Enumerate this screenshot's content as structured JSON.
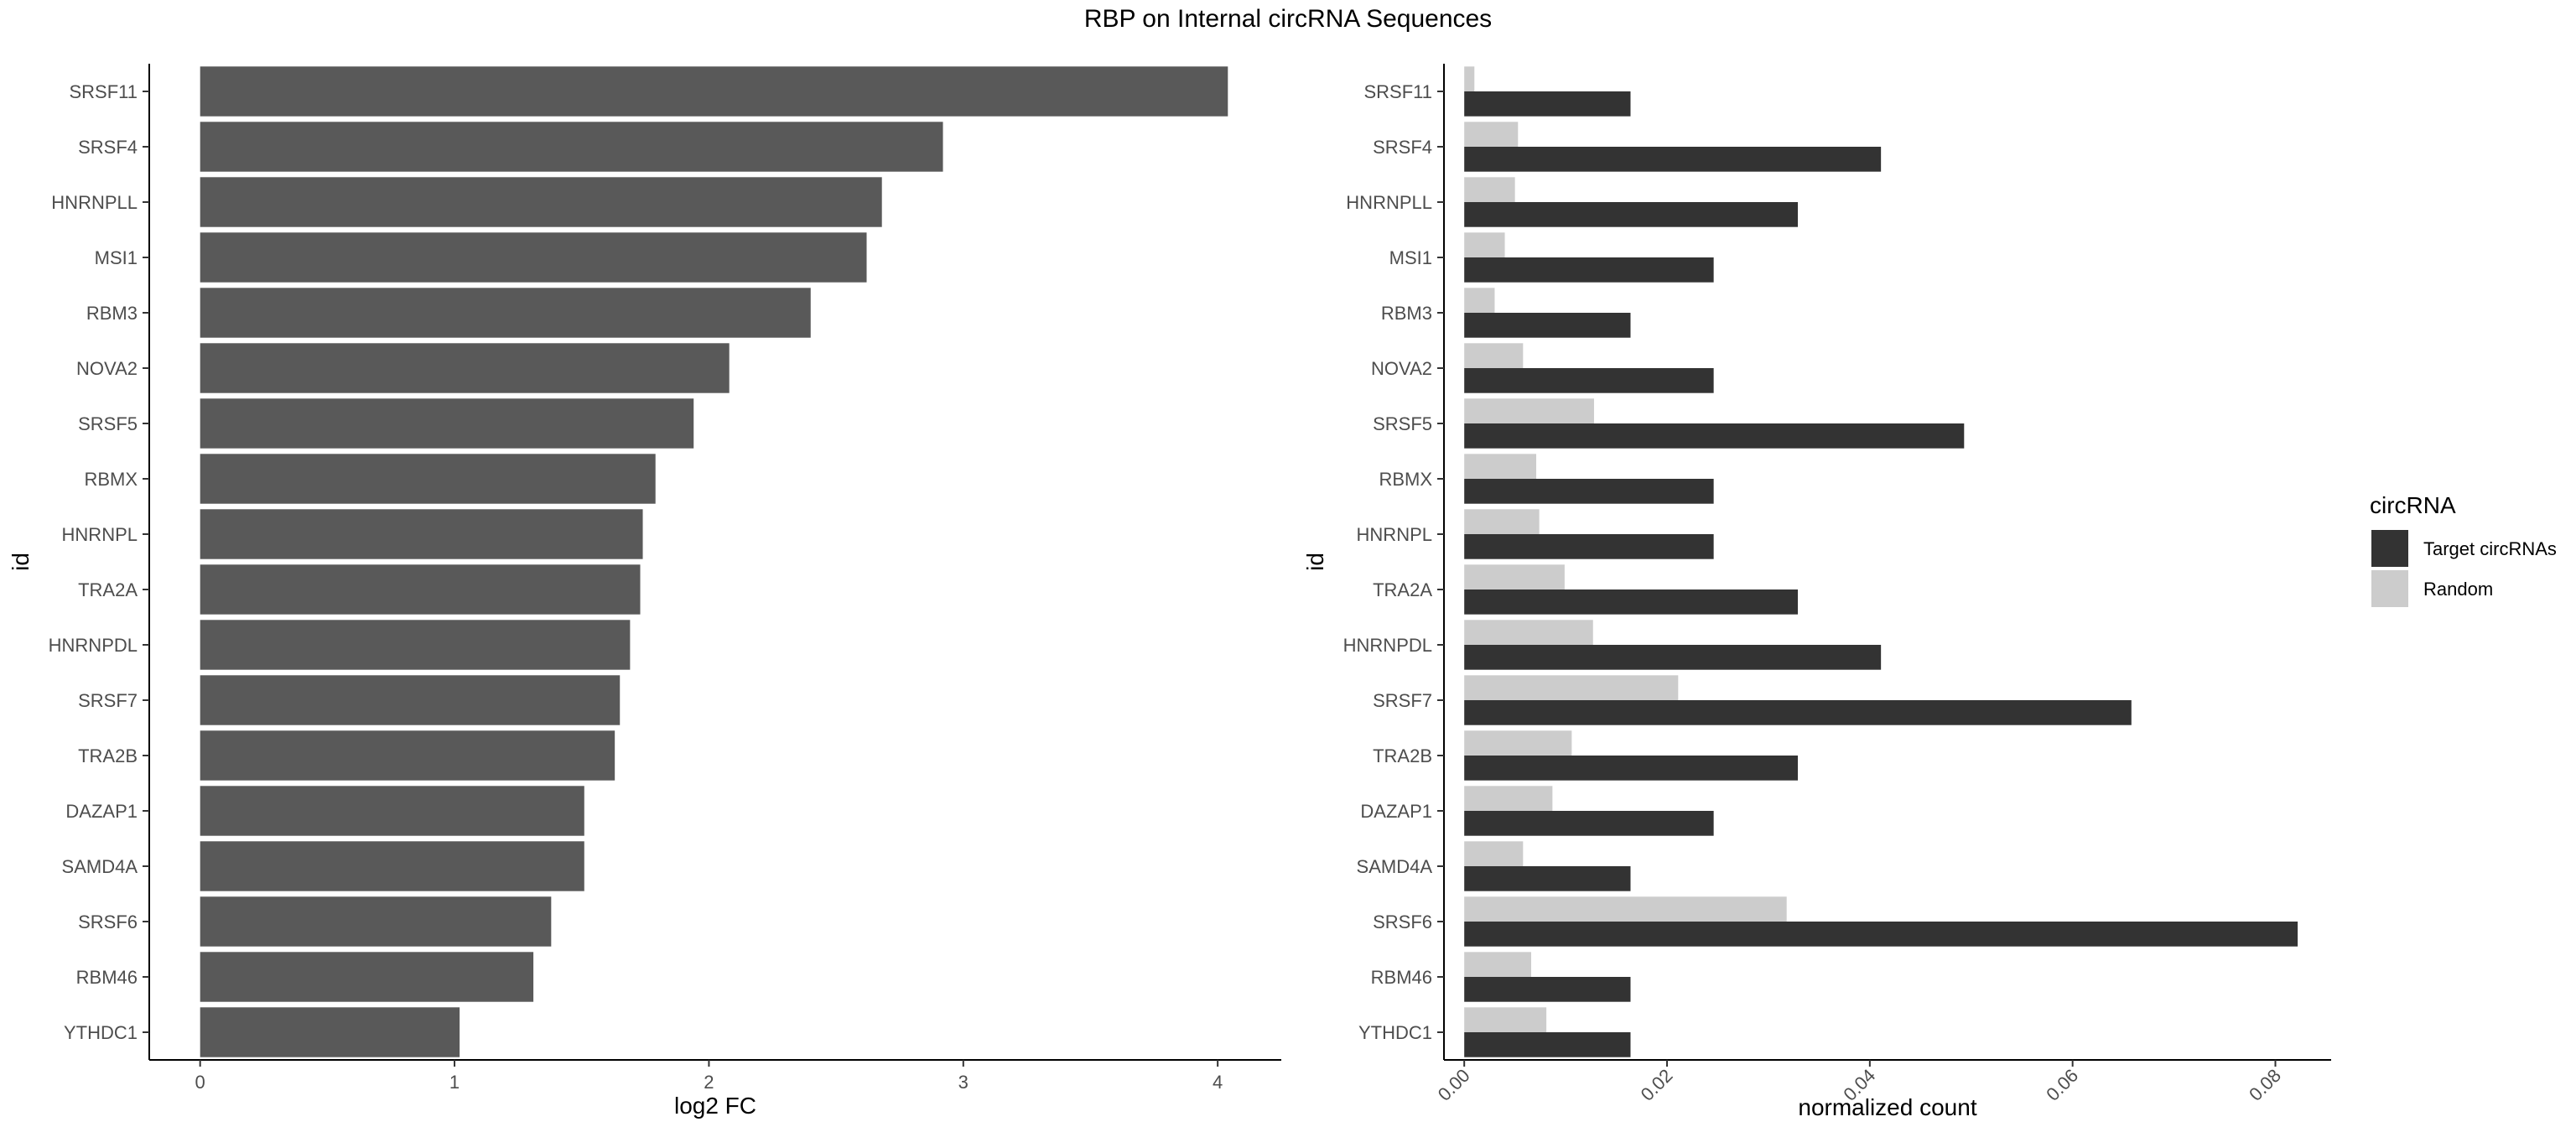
{
  "title": "RBP on Internal circRNA Sequences",
  "chart_data": [
    {
      "type": "bar",
      "orientation": "horizontal",
      "xlabel": "log2 FC",
      "ylabel": "id",
      "xlim": [
        -0.2,
        4.25
      ],
      "xticks": [
        "0",
        "1",
        "2",
        "3",
        "4"
      ],
      "grid": false,
      "color": "#595959",
      "categories": [
        "SRSF11",
        "SRSF4",
        "HNRNPLL",
        "MSI1",
        "RBM3",
        "NOVA2",
        "SRSF5",
        "RBMX",
        "HNRNPL",
        "TRA2A",
        "HNRNPDL",
        "SRSF7",
        "TRA2B",
        "DAZAP1",
        "SAMD4A",
        "SRSF6",
        "RBM46",
        "YTHDC1"
      ],
      "values": [
        4.04,
        2.92,
        2.68,
        2.62,
        2.4,
        2.08,
        1.94,
        1.79,
        1.74,
        1.73,
        1.69,
        1.65,
        1.63,
        1.51,
        1.51,
        1.38,
        1.31,
        1.02
      ]
    },
    {
      "type": "bar",
      "orientation": "horizontal",
      "grouped": true,
      "xlabel": "normalized count",
      "ylabel": "id",
      "xlim": [
        -0.002,
        0.0855
      ],
      "xticks": [
        "0.00",
        "0.02",
        "0.04",
        "0.06",
        "0.08"
      ],
      "grid": false,
      "legend_title": "circRNA",
      "legend_position": "right",
      "categories": [
        "SRSF11",
        "SRSF4",
        "HNRNPLL",
        "MSI1",
        "RBM3",
        "NOVA2",
        "SRSF5",
        "RBMX",
        "HNRNPL",
        "TRA2A",
        "HNRNPDL",
        "SRSF7",
        "TRA2B",
        "DAZAP1",
        "SAMD4A",
        "SRSF6",
        "RBM46",
        "YTHDC1"
      ],
      "series": [
        {
          "name": "Target circRNAs",
          "color": "#333333",
          "values": [
            0.0164,
            0.0411,
            0.0329,
            0.0246,
            0.0164,
            0.0246,
            0.0493,
            0.0246,
            0.0246,
            0.0329,
            0.0411,
            0.0658,
            0.0329,
            0.0246,
            0.0164,
            0.0822,
            0.0164,
            0.0164
          ]
        },
        {
          "name": "Random",
          "color": "#cccccc",
          "values": [
            0.001,
            0.0053,
            0.005,
            0.004,
            0.003,
            0.0058,
            0.0128,
            0.0071,
            0.0074,
            0.0099,
            0.0127,
            0.0211,
            0.0106,
            0.0087,
            0.0058,
            0.0318,
            0.0066,
            0.0081
          ]
        }
      ]
    }
  ]
}
